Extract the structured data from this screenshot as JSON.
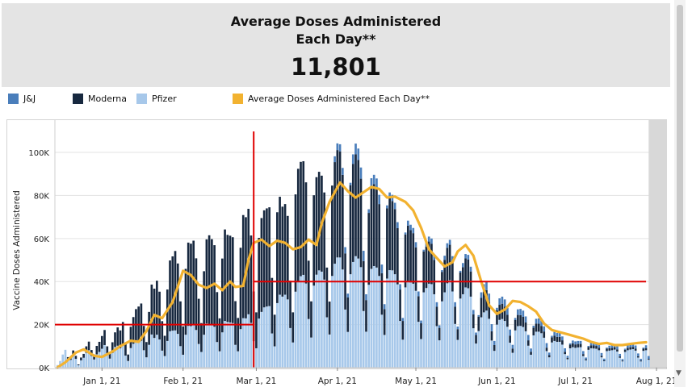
{
  "kpi": {
    "title_line1": "Average Doses Administered",
    "title_line2": "Each Day**",
    "value": "11,801"
  },
  "legend": [
    {
      "label": "J&J",
      "color": "#4a7ebb"
    },
    {
      "label": "Moderna",
      "color": "#17283f"
    },
    {
      "label": "Pfizer",
      "color": "#a7c8ea"
    },
    {
      "label": "Average Doses Administered Each Day**",
      "color": "#f2b230"
    }
  ],
  "chart_data": {
    "type": "bar",
    "stacked": true,
    "ylabel": "Vaccine Doses Administered",
    "ylim": [
      0,
      115000
    ],
    "y_ticks": [
      {
        "value": 0,
        "label": "0K"
      },
      {
        "value": 20000,
        "label": "20K"
      },
      {
        "value": 40000,
        "label": "40K"
      },
      {
        "value": 60000,
        "label": "60K"
      },
      {
        "value": 80000,
        "label": "80K"
      },
      {
        "value": 100000,
        "label": "100K"
      }
    ],
    "x_range": [
      "2020-12-14",
      "2021-08-05"
    ],
    "x_ticks": [
      {
        "date": "2021-01-01",
        "label": "Jan 1, 21"
      },
      {
        "date": "2021-02-01",
        "label": "Feb 1, 21"
      },
      {
        "date": "2021-03-01",
        "label": "Mar 1, 21"
      },
      {
        "date": "2021-04-01",
        "label": "Apr 1, 21"
      },
      {
        "date": "2021-05-01",
        "label": "May 1, 21"
      },
      {
        "date": "2021-06-01",
        "label": "Jun 1, 21"
      },
      {
        "date": "2021-07-01",
        "label": "Jul 1, 21"
      },
      {
        "date": "2021-08-01",
        "label": "Aug 1, 21"
      }
    ],
    "bar_start_date": "2020-12-15",
    "series": [
      {
        "name": "Pfizer",
        "color": "#a7c8ea",
        "values": [
          1200,
          3100,
          6100,
          8300,
          4100,
          3600,
          6200,
          4100,
          1100,
          3400,
          4600,
          6900,
          8100,
          5400,
          3800,
          6200,
          7300,
          8800,
          10500,
          5900,
          4200,
          6800,
          9600,
          10200,
          9000,
          10700,
          5600,
          3100,
          9100,
          11100,
          12200,
          12200,
          12500,
          8100,
          4800,
          10600,
          15400,
          13800,
          15300,
          13100,
          7900,
          5400,
          12400,
          16900,
          17200,
          17300,
          15700,
          10000,
          6000,
          15300,
          19400,
          19300,
          19900,
          17500,
          11000,
          7300,
          15300,
          20500,
          20300,
          20200,
          19000,
          11900,
          7600,
          16400,
          21700,
          21200,
          21000,
          20700,
          10600,
          7600,
          17900,
          23000,
          22900,
          24800,
          20800,
          12300,
          9000,
          22800,
          25900,
          28000,
          28400,
          28600,
          15900,
          9900,
          30000,
          33900,
          33000,
          33900,
          31700,
          18400,
          11700,
          35300,
          40300,
          42500,
          43100,
          39100,
          22600,
          14000,
          38100,
          43200,
          45200,
          44600,
          40900,
          23400,
          15400,
          42600,
          48300,
          51200,
          51200,
          45600,
          27000,
          16600,
          43400,
          49100,
          51800,
          50700,
          46700,
          26300,
          16700,
          38500,
          45900,
          47200,
          46500,
          42600,
          24600,
          15200,
          41400,
          45300,
          45200,
          43400,
          38700,
          21700,
          13000,
          37300,
          40300,
          39600,
          39000,
          35700,
          21300,
          13300,
          35000,
          37000,
          39000,
          38800,
          34100,
          19300,
          12700,
          30800,
          35000,
          39200,
          40600,
          35400,
          20300,
          12900,
          32100,
          34100,
          37300,
          36900,
          33000,
          18300,
          11200,
          17000,
          23400,
          25700,
          26500,
          22700,
          12600,
          7800,
          20000,
          22200,
          22600,
          21700,
          19000,
          11600,
          6900,
          17300,
          19300,
          19400,
          18900,
          16900,
          10200,
          6000,
          15000,
          16700,
          16700,
          16000,
          13900,
          7700,
          4800,
          11700,
          12400,
          12000,
          12000,
          10700,
          6300,
          3900,
          9000,
          9500,
          9200,
          9400,
          9500,
          5400,
          3400,
          8300,
          9000,
          8900,
          8800,
          8100,
          4800,
          3000,
          7700,
          7900,
          8100,
          8400,
          7500,
          4600,
          2900,
          7300,
          8100,
          8400,
          8600,
          7900,
          4700,
          2900,
          7800,
          8100,
          3700
        ]
      },
      {
        "name": "Moderna",
        "color": "#17283f",
        "values": [
          0,
          0,
          0,
          0,
          800,
          700,
          1800,
          1400,
          400,
          1300,
          1800,
          3000,
          4000,
          2800,
          2300,
          3900,
          4700,
          5900,
          7000,
          4000,
          3000,
          5000,
          6800,
          8500,
          8300,
          10500,
          5300,
          3000,
          9900,
          12400,
          15000,
          16200,
          17300,
          11300,
          7100,
          15300,
          23200,
          22900,
          25100,
          22200,
          13700,
          9400,
          23900,
          32900,
          34500,
          36900,
          32700,
          20800,
          13200,
          30600,
          38700,
          38300,
          39100,
          33300,
          21000,
          13400,
          29500,
          39100,
          41200,
          39500,
          37900,
          23200,
          15300,
          34300,
          42500,
          40500,
          40300,
          39900,
          20300,
          15500,
          37800,
          47900,
          47000,
          49000,
          40600,
          23100,
          16700,
          37500,
          43600,
          45100,
          45600,
          45900,
          25800,
          14700,
          42200,
          45500,
          41800,
          42100,
          38800,
          22000,
          14000,
          45200,
          52100,
          53100,
          52800,
          47000,
          27100,
          16800,
          42000,
          45300,
          45800,
          44600,
          40500,
          23100,
          15300,
          42000,
          47200,
          49900,
          49300,
          44000,
          26100,
          16000,
          41400,
          45600,
          47300,
          45800,
          41100,
          23200,
          14700,
          33400,
          38500,
          38100,
          37000,
          33400,
          19300,
          12000,
          32600,
          33500,
          32200,
          30300,
          26100,
          14600,
          8700,
          24600,
          25700,
          24300,
          23500,
          20200,
          11900,
          7300,
          19000,
          19300,
          19600,
          18800,
          15900,
          9000,
          5800,
          13700,
          15100,
          16500,
          16500,
          14000,
          8000,
          5000,
          12100,
          12600,
          13500,
          13300,
          11700,
          6500,
          4000,
          6700,
          9000,
          9600,
          9500,
          7800,
          4300,
          2700,
          6600,
          7000,
          7100,
          6600,
          5600,
          3300,
          2000,
          4800,
          5200,
          5000,
          4700,
          4100,
          2500,
          1400,
          3600,
          3800,
          3700,
          3400,
          2900,
          1600,
          1000,
          2400,
          2500,
          2300,
          2300,
          2000,
          1100,
          700,
          1700,
          1800,
          1600,
          1600,
          1500,
          900,
          500,
          1300,
          1400,
          1400,
          1300,
          1200,
          700,
          400,
          1100,
          1100,
          1100,
          1100,
          1000,
          600,
          400,
          1000,
          1100,
          1100,
          1100,
          1000,
          600,
          400,
          1000,
          1000,
          400
        ]
      },
      {
        "name": "J&J",
        "color": "#4a7ebb",
        "values": [
          0,
          0,
          0,
          0,
          0,
          0,
          0,
          0,
          0,
          0,
          0,
          0,
          0,
          0,
          0,
          0,
          0,
          0,
          0,
          0,
          0,
          0,
          0,
          0,
          0,
          0,
          0,
          0,
          0,
          0,
          0,
          0,
          0,
          0,
          0,
          0,
          0,
          0,
          0,
          0,
          0,
          0,
          0,
          0,
          0,
          0,
          0,
          0,
          0,
          0,
          0,
          0,
          0,
          0,
          0,
          0,
          0,
          0,
          0,
          0,
          0,
          0,
          0,
          0,
          0,
          0,
          0,
          0,
          0,
          0,
          0,
          0,
          0,
          0,
          0,
          0,
          0,
          0,
          0,
          0,
          0,
          0,
          0,
          0,
          0,
          0,
          0,
          0,
          0,
          0,
          0,
          0,
          0,
          0,
          0,
          0,
          0,
          0,
          0,
          0,
          0,
          0,
          0,
          0,
          0,
          0,
          2700,
          3100,
          3300,
          3200,
          2900,
          1800,
          1100,
          4400,
          5000,
          5300,
          5200,
          4800,
          2700,
          1700,
          3600,
          4300,
          4400,
          4300,
          4000,
          2300,
          1400,
          2600,
          2900,
          2900,
          2800,
          2500,
          1400,
          900,
          2300,
          2500,
          2400,
          2400,
          2200,
          1300,
          800,
          2200,
          2300,
          2400,
          2400,
          2100,
          1200,
          800,
          1900,
          2100,
          2300,
          2400,
          2100,
          1200,
          800,
          1900,
          2000,
          2200,
          2200,
          2000,
          1100,
          700,
          2600,
          3500,
          3800,
          3900,
          3300,
          1900,
          1200,
          3000,
          3300,
          3400,
          3200,
          2800,
          1700,
          1000,
          2600,
          2900,
          2900,
          2800,
          2500,
          1500,
          900,
          2200,
          2500,
          2500,
          2400,
          2100,
          1200,
          700,
          1700,
          1800,
          1800,
          1800,
          1600,
          900,
          600,
          1300,
          1400,
          1400,
          1400,
          1400,
          800,
          500,
          1300,
          1400,
          1400,
          1400,
          1300,
          800,
          500,
          1200,
          1300,
          1300,
          1400,
          1200,
          700,
          500,
          1200,
          1300,
          1400,
          1400,
          1300,
          800,
          500,
          1300,
          1300,
          600
        ]
      }
    ],
    "avg_line": {
      "name": "Average Doses Administered Each Day**",
      "color": "#f2b230",
      "points": [
        [
          "2020-12-15",
          100
        ],
        [
          "2020-12-18",
          2500
        ],
        [
          "2020-12-22",
          7000
        ],
        [
          "2020-12-25",
          8500
        ],
        [
          "2020-12-29",
          5500
        ],
        [
          "2021-01-01",
          5000
        ],
        [
          "2021-01-05",
          7500
        ],
        [
          "2021-01-08",
          10000
        ],
        [
          "2021-01-12",
          12500
        ],
        [
          "2021-01-15",
          12000
        ],
        [
          "2021-01-18",
          17000
        ],
        [
          "2021-01-21",
          24500
        ],
        [
          "2021-01-24",
          23000
        ],
        [
          "2021-01-28",
          30500
        ],
        [
          "2021-02-01",
          45000
        ],
        [
          "2021-02-04",
          43000
        ],
        [
          "2021-02-07",
          38500
        ],
        [
          "2021-02-10",
          37000
        ],
        [
          "2021-02-13",
          39000
        ],
        [
          "2021-02-16",
          36000
        ],
        [
          "2021-02-19",
          40000
        ],
        [
          "2021-02-21",
          37500
        ],
        [
          "2021-02-24",
          38000
        ],
        [
          "2021-02-26",
          50000
        ],
        [
          "2021-02-28",
          58000
        ],
        [
          "2021-03-03",
          59500
        ],
        [
          "2021-03-06",
          56500
        ],
        [
          "2021-03-09",
          59000
        ],
        [
          "2021-03-12",
          58000
        ],
        [
          "2021-03-15",
          55000
        ],
        [
          "2021-03-18",
          56000
        ],
        [
          "2021-03-21",
          59500
        ],
        [
          "2021-03-24",
          57000
        ],
        [
          "2021-03-26",
          67000
        ],
        [
          "2021-03-29",
          77000
        ],
        [
          "2021-04-02",
          86000
        ],
        [
          "2021-04-05",
          82000
        ],
        [
          "2021-04-08",
          79000
        ],
        [
          "2021-04-11",
          81500
        ],
        [
          "2021-04-14",
          84000
        ],
        [
          "2021-04-17",
          83000
        ],
        [
          "2021-04-20",
          79000
        ],
        [
          "2021-04-23",
          79500
        ],
        [
          "2021-04-27",
          77000
        ],
        [
          "2021-04-30",
          73000
        ],
        [
          "2021-05-03",
          65000
        ],
        [
          "2021-05-06",
          55000
        ],
        [
          "2021-05-09",
          51000
        ],
        [
          "2021-05-12",
          47000
        ],
        [
          "2021-05-15",
          49000
        ],
        [
          "2021-05-17",
          54000
        ],
        [
          "2021-05-20",
          57000
        ],
        [
          "2021-05-23",
          52000
        ],
        [
          "2021-05-26",
          40000
        ],
        [
          "2021-05-29",
          29000
        ],
        [
          "2021-06-01",
          25000
        ],
        [
          "2021-06-04",
          27000
        ],
        [
          "2021-06-07",
          31000
        ],
        [
          "2021-06-10",
          30500
        ],
        [
          "2021-06-13",
          28500
        ],
        [
          "2021-06-16",
          26000
        ],
        [
          "2021-06-19",
          20500
        ],
        [
          "2021-06-22",
          17500
        ],
        [
          "2021-06-25",
          16500
        ],
        [
          "2021-06-28",
          15500
        ],
        [
          "2021-07-01",
          14500
        ],
        [
          "2021-07-04",
          13500
        ],
        [
          "2021-07-07",
          12000
        ],
        [
          "2021-07-10",
          11000
        ],
        [
          "2021-07-13",
          11500
        ],
        [
          "2021-07-16",
          10500
        ],
        [
          "2021-07-19",
          10500
        ],
        [
          "2021-07-22",
          11000
        ],
        [
          "2021-07-25",
          11500
        ],
        [
          "2021-07-28",
          11800
        ]
      ]
    },
    "shaded_period": [
      "2021-07-29",
      "2021-08-05"
    ],
    "annotations": [
      {
        "type": "vline",
        "date": "2021-02-28"
      },
      {
        "type": "hline",
        "y": 20000,
        "x_start": "2020-12-14",
        "x_end": "2021-02-28"
      },
      {
        "type": "hline",
        "y": 40000,
        "x_start": "2021-02-28",
        "x_end": "2021-07-28"
      }
    ]
  }
}
